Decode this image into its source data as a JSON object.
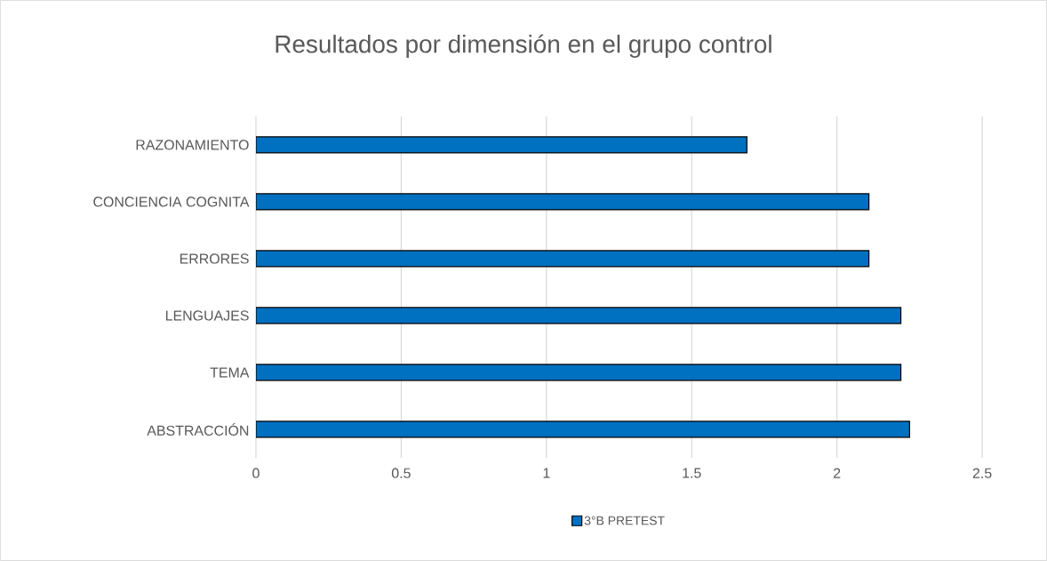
{
  "chart_data": {
    "type": "bar",
    "orientation": "horizontal",
    "title": "Resultados por dimensión en el grupo control",
    "categories": [
      "RAZONAMIENTO",
      "CONCIENCIA COGNITA",
      "ERRORES",
      "LENGUAJES",
      "TEMA",
      "ABSTRACCIÓN"
    ],
    "series": [
      {
        "name": "3°B PRETEST",
        "color": "#0070c0",
        "values": [
          1.69,
          2.11,
          2.11,
          2.22,
          2.22,
          2.25
        ]
      }
    ],
    "xlim": [
      0,
      2.5
    ],
    "xticks": [
      0,
      0.5,
      1,
      1.5,
      2,
      2.5
    ],
    "grid": "x",
    "legend": "bottom"
  }
}
